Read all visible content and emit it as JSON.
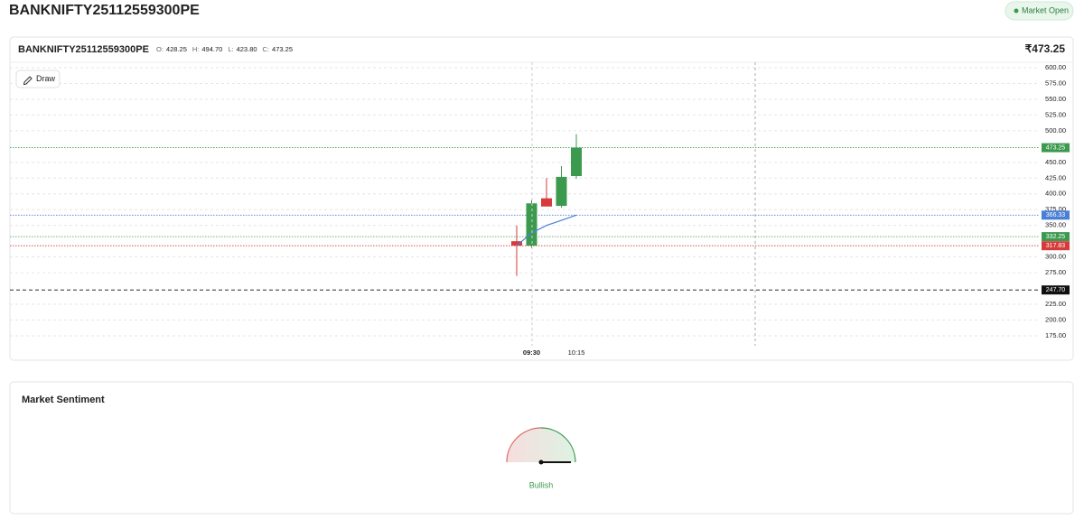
{
  "header": {
    "title": "BANKNIFTY25112559300PE",
    "status": "Market Open"
  },
  "toolbar": {
    "draw": "Draw"
  },
  "ohlc_bar": {
    "symbol": "BANKNIFTY25112559300PE",
    "items": [
      {
        "label": "O:",
        "value": "428.25"
      },
      {
        "label": "H:",
        "value": "494.70"
      },
      {
        "label": "L:",
        "value": "423.80"
      },
      {
        "label": "C:",
        "value": "473.25"
      }
    ],
    "price": "₹473.25"
  },
  "chart_data": {
    "type": "candlestick",
    "categories": [
      null,
      "09:30",
      null,
      null,
      "10:15"
    ],
    "open": [
      325,
      318,
      393,
      381,
      428.25
    ],
    "high": [
      350,
      390,
      425,
      444,
      494.7
    ],
    "low": [
      270,
      314,
      380,
      378,
      423.8
    ],
    "close": [
      318,
      385,
      380,
      427,
      473.25
    ],
    "up_color": "#3c9a4f",
    "down_color": "#d63a3a",
    "line_values": [
      318,
      338,
      350,
      358,
      366.33
    ],
    "line_color": "#4a7fd6",
    "ylim": [
      175,
      600
    ],
    "yticks": [
      {
        "value": 600,
        "label": "600.00"
      },
      {
        "value": 575,
        "label": "575.00"
      },
      {
        "value": 550,
        "label": "550.00"
      },
      {
        "value": 525,
        "label": "525.00"
      },
      {
        "value": 500,
        "label": "500.00"
      },
      {
        "value": 450,
        "label": "450.00"
      },
      {
        "value": 425,
        "label": "425.00"
      },
      {
        "value": 400,
        "label": "400.00"
      },
      {
        "value": 375,
        "label": "375.00"
      },
      {
        "value": 350,
        "label": "350.00"
      },
      {
        "value": 300,
        "label": "300.00"
      },
      {
        "value": 275,
        "label": "275.00"
      },
      {
        "value": 225,
        "label": "225.00"
      },
      {
        "value": 200,
        "label": "200.00"
      },
      {
        "value": 175,
        "label": "175.00"
      }
    ],
    "grid": true,
    "price_lines": [
      {
        "value": 473.25,
        "color": "#3c9a4f"
      },
      {
        "value": 366.33,
        "color": "#4a7fd6"
      },
      {
        "value": 332.25,
        "color": "#3c9a4f"
      },
      {
        "value": 317.83,
        "color": "#d63a3a"
      },
      {
        "value": 247.7,
        "label": "247.70",
        "color": "#111111"
      }
    ]
  },
  "sentiment": {
    "title": "Market Sentiment",
    "label": "Bullish"
  }
}
